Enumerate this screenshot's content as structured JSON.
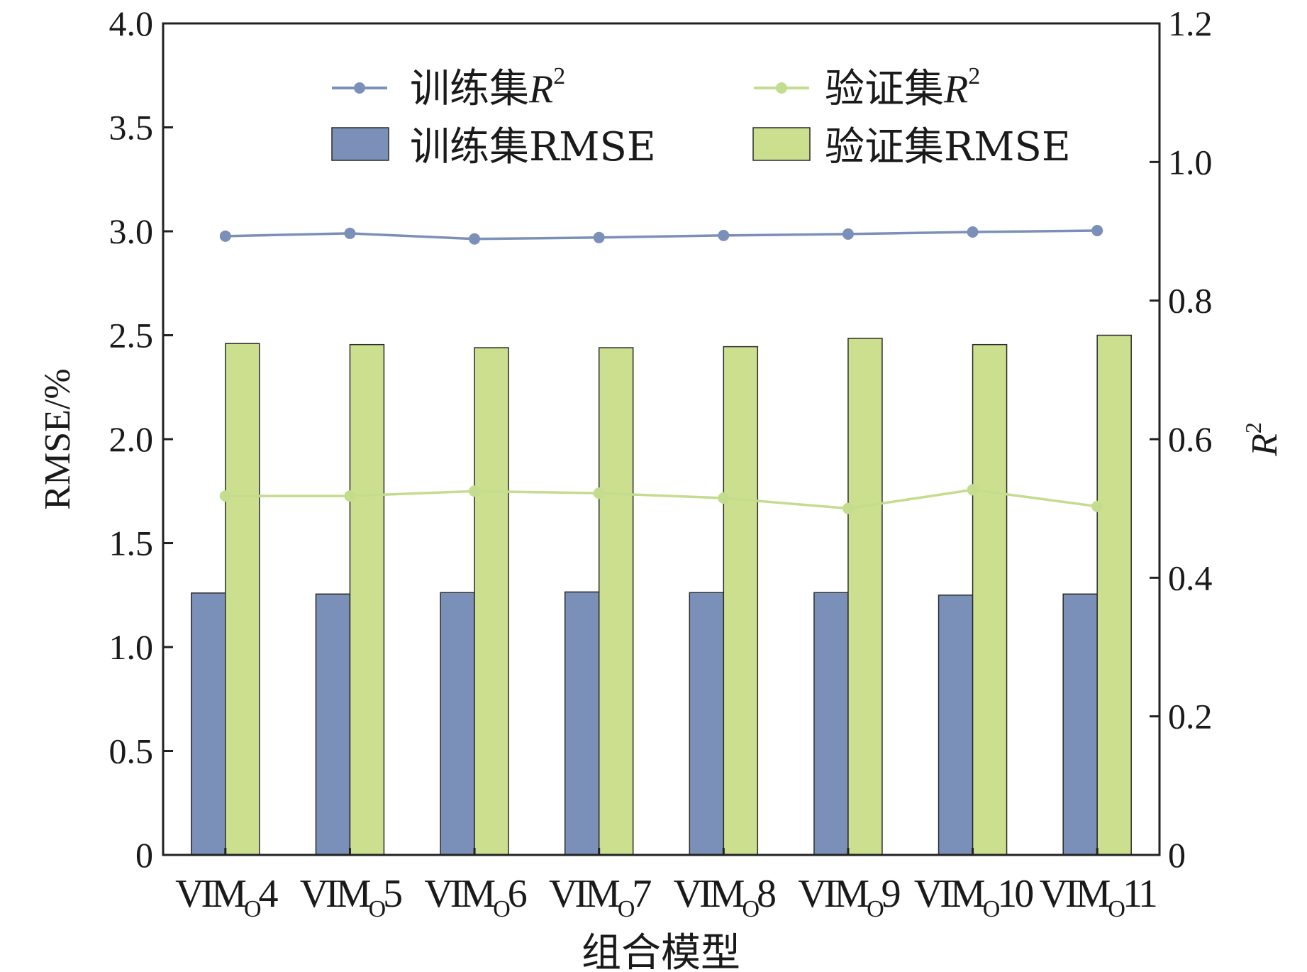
{
  "chart_data": {
    "type": "bar",
    "xlabel": "组合模型",
    "ylabel": "RMSE/%",
    "y2label": "R",
    "y2label_sup": "2",
    "ylim": [
      0,
      4.0
    ],
    "y2lim": [
      0,
      1.2
    ],
    "yticks": [
      "0",
      "0.5",
      "1.0",
      "1.5",
      "2.0",
      "2.5",
      "3.0",
      "3.5",
      "4.0"
    ],
    "y2ticks": [
      "0",
      "0.2",
      "0.4",
      "0.6",
      "0.8",
      "1.0",
      "1.2"
    ],
    "grid": false,
    "legend_position": "top",
    "categories": [
      {
        "main": "VIM",
        "sub": "O",
        "num": "4"
      },
      {
        "main": "VIM",
        "sub": "O",
        "num": "5"
      },
      {
        "main": "VIM",
        "sub": "O",
        "num": "6"
      },
      {
        "main": "VIM",
        "sub": "O",
        "num": "7"
      },
      {
        "main": "VIM",
        "sub": "O",
        "num": "8"
      },
      {
        "main": "VIM",
        "sub": "O",
        "num": "9"
      },
      {
        "main": "VIM",
        "sub": "O",
        "num": "10"
      },
      {
        "main": "VIM",
        "sub": "O",
        "num": "11"
      }
    ],
    "bar_series": [
      {
        "name": "训练集RMSE",
        "color": "#7b90b8",
        "values": [
          1.26,
          1.255,
          1.262,
          1.265,
          1.262,
          1.262,
          1.25,
          1.255
        ]
      },
      {
        "name": "验证集RMSE",
        "color": "#ccdf8f",
        "values": [
          2.46,
          2.455,
          2.44,
          2.44,
          2.445,
          2.485,
          2.455,
          2.5
        ]
      }
    ],
    "line_series": [
      {
        "name": "训练集",
        "name_italic": "R",
        "name_sup": "2",
        "color": "#7b90b8",
        "axis": "right",
        "values": [
          0.893,
          0.897,
          0.889,
          0.891,
          0.894,
          0.896,
          0.899,
          0.901
        ]
      },
      {
        "name": "验证集",
        "name_italic": "R",
        "name_sup": "2",
        "color": "#c4dc8d",
        "axis": "right",
        "values": [
          0.518,
          0.518,
          0.525,
          0.522,
          0.515,
          0.5,
          0.527,
          0.503
        ]
      }
    ]
  }
}
